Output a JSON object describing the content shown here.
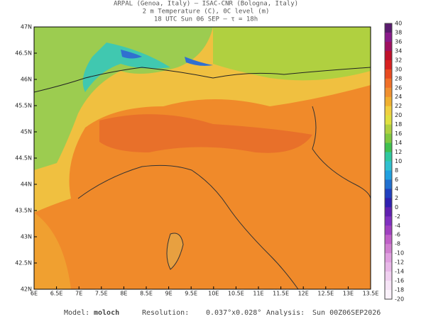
{
  "header": {
    "line1": "ARPAL (Genoa, Italy)  —  ISAC-CNR (Bologna, Italy)",
    "line2": "2 m Temperature (C), 0C level (m)",
    "line3": "18 UTC Sun 06 SEP  —  τ = 18h"
  },
  "map": {
    "y_labels": [
      "47N",
      "46.5N",
      "46N",
      "45.5N",
      "45N",
      "44.5N",
      "44N",
      "43.5N",
      "43N",
      "42.5N",
      "42N"
    ],
    "x_labels": [
      "6E",
      "6.5E",
      "7E",
      "7.5E",
      "8E",
      "8.5E",
      "9E",
      "9.5E",
      "10E",
      "10.5E",
      "11E",
      "11.5E",
      "12E",
      "12.5E",
      "13E",
      "13.5E"
    ]
  },
  "colorbar": {
    "labels": [
      40,
      38,
      36,
      34,
      32,
      30,
      28,
      26,
      24,
      22,
      20,
      18,
      16,
      14,
      12,
      10,
      8,
      6,
      4,
      2,
      0,
      -2,
      -4,
      -6,
      -8,
      -10,
      -12,
      -14,
      -16,
      -18,
      -20
    ]
  },
  "footer": {
    "model_label": "Model:",
    "model": "moloch",
    "resolution_label": "Resolution:",
    "resolution": "0.037°x0.028°",
    "analysis_label": "Analysis:",
    "analysis": "Sun 00Z06SEP2026"
  }
}
